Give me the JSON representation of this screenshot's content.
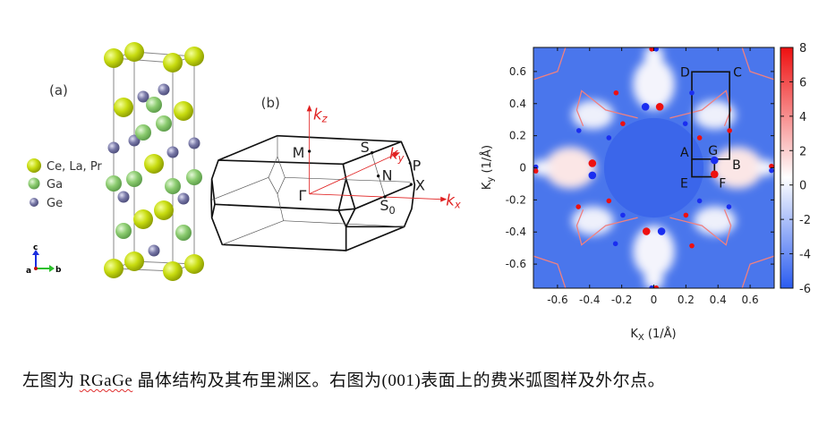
{
  "panel_a": {
    "label": "(a)",
    "legend": [
      {
        "label": "Ce, La, Pr",
        "color": "#c8dc10"
      },
      {
        "label": "Ga",
        "color": "#8ccc70"
      },
      {
        "label": "Ge",
        "color": "#7a7aa8"
      }
    ],
    "axes": {
      "c": "c",
      "a": "a",
      "b": "b"
    }
  },
  "panel_b": {
    "label": "(b)",
    "points": {
      "M": "M",
      "S": "S",
      "P": "P",
      "N": "N",
      "X": "X",
      "Gamma": "Γ",
      "S0": "S",
      "S0_sub": "0"
    },
    "axes": {
      "kz": "k",
      "kz_sub": "z",
      "ky": "k",
      "ky_sub": "y",
      "kx": "k",
      "kx_sub": "x"
    }
  },
  "chart_data": {
    "type": "heatmap",
    "xlabel": "K",
    "xlabel_sub": "X",
    "xlabel_unit": " (1/Å)",
    "ylabel": "K",
    "ylabel_sub": "y",
    "ylabel_unit": " (1/Å)",
    "xlim": [
      -0.75,
      0.75
    ],
    "ylim": [
      -0.75,
      0.75
    ],
    "xticks": [
      "-0.6",
      "-0.4",
      "-0.2",
      "0",
      "0.2",
      "0.4",
      "0.6"
    ],
    "yticks": [
      "0.6",
      "0.4",
      "0.2",
      "0",
      "-0.2",
      "-0.4",
      "-0.6"
    ],
    "colorbar": {
      "min": -6,
      "max": 8,
      "ticks": [
        "8",
        "6",
        "4",
        "2",
        "0",
        "-2",
        "-4",
        "-6"
      ],
      "colors": {
        "low": "#2a5cf0",
        "mid": "#ffffff",
        "high": "#ee1010"
      }
    },
    "weyl_points": [
      {
        "x": -0.013,
        "y": 0.74,
        "chirality": "+",
        "size": "small"
      },
      {
        "x": 0.015,
        "y": 0.74,
        "chirality": "-",
        "size": "small"
      },
      {
        "x": -0.235,
        "y": 0.467,
        "chirality": "+",
        "size": "small"
      },
      {
        "x": 0.237,
        "y": 0.467,
        "chirality": "-",
        "size": "small"
      },
      {
        "x": -0.052,
        "y": 0.38,
        "chirality": "-",
        "size": "large"
      },
      {
        "x": 0.037,
        "y": 0.38,
        "chirality": "+",
        "size": "large"
      },
      {
        "x": -0.193,
        "y": 0.275,
        "chirality": "+",
        "size": "small"
      },
      {
        "x": 0.196,
        "y": 0.275,
        "chirality": "-",
        "size": "small"
      },
      {
        "x": -0.467,
        "y": 0.232,
        "chirality": "-",
        "size": "small"
      },
      {
        "x": 0.472,
        "y": 0.232,
        "chirality": "+",
        "size": "small"
      },
      {
        "x": -0.28,
        "y": 0.187,
        "chirality": "-",
        "size": "small"
      },
      {
        "x": 0.285,
        "y": 0.187,
        "chirality": "+",
        "size": "small"
      },
      {
        "x": -0.383,
        "y": 0.028,
        "chirality": "+",
        "size": "large"
      },
      {
        "x": -0.383,
        "y": -0.047,
        "chirality": "-",
        "size": "large"
      },
      {
        "x": 0.378,
        "y": 0.047,
        "chirality": "-",
        "size": "large"
      },
      {
        "x": 0.378,
        "y": -0.04,
        "chirality": "+",
        "size": "large"
      },
      {
        "x": -0.735,
        "y": 0.005,
        "chirality": "-",
        "size": "small"
      },
      {
        "x": -0.735,
        "y": -0.02,
        "chirality": "+",
        "size": "small"
      },
      {
        "x": 0.733,
        "y": 0.01,
        "chirality": "+",
        "size": "small"
      },
      {
        "x": 0.733,
        "y": -0.017,
        "chirality": "-",
        "size": "small"
      },
      {
        "x": -0.28,
        "y": -0.206,
        "chirality": "+",
        "size": "small"
      },
      {
        "x": 0.285,
        "y": -0.206,
        "chirality": "-",
        "size": "small"
      },
      {
        "x": -0.47,
        "y": -0.243,
        "chirality": "+",
        "size": "small"
      },
      {
        "x": 0.468,
        "y": -0.243,
        "chirality": "-",
        "size": "small"
      },
      {
        "x": -0.193,
        "y": -0.295,
        "chirality": "-",
        "size": "small"
      },
      {
        "x": 0.2,
        "y": -0.295,
        "chirality": "+",
        "size": "small"
      },
      {
        "x": -0.046,
        "y": -0.396,
        "chirality": "+",
        "size": "large"
      },
      {
        "x": 0.048,
        "y": -0.396,
        "chirality": "-",
        "size": "large"
      },
      {
        "x": -0.239,
        "y": -0.473,
        "chirality": "-",
        "size": "small"
      },
      {
        "x": 0.237,
        "y": -0.486,
        "chirality": "+",
        "size": "small"
      },
      {
        "x": -0.013,
        "y": -0.748,
        "chirality": "-",
        "size": "small"
      },
      {
        "x": 0.015,
        "y": -0.748,
        "chirality": "+",
        "size": "small"
      }
    ],
    "point_colors": {
      "+": "#ee1010",
      "-": "#1a2ef0"
    },
    "path_labels": [
      {
        "label": "D",
        "x": 0.237,
        "y": 0.598
      },
      {
        "label": "C",
        "x": 0.472,
        "y": 0.598
      },
      {
        "label": "A",
        "x": 0.237,
        "y": 0.054
      },
      {
        "label": "B",
        "x": 0.472,
        "y": 0.054
      },
      {
        "label": "G",
        "x": 0.378,
        "y": 0.054
      },
      {
        "label": "E",
        "x": 0.237,
        "y": -0.056
      },
      {
        "label": "F",
        "x": 0.378,
        "y": -0.056
      }
    ]
  },
  "caption": {
    "before": "左图为 ",
    "term": "RGaGe",
    "after": " 晶体结构及其布里渊区。右图为(001)表面上的费米弧图样及外尔点。"
  }
}
